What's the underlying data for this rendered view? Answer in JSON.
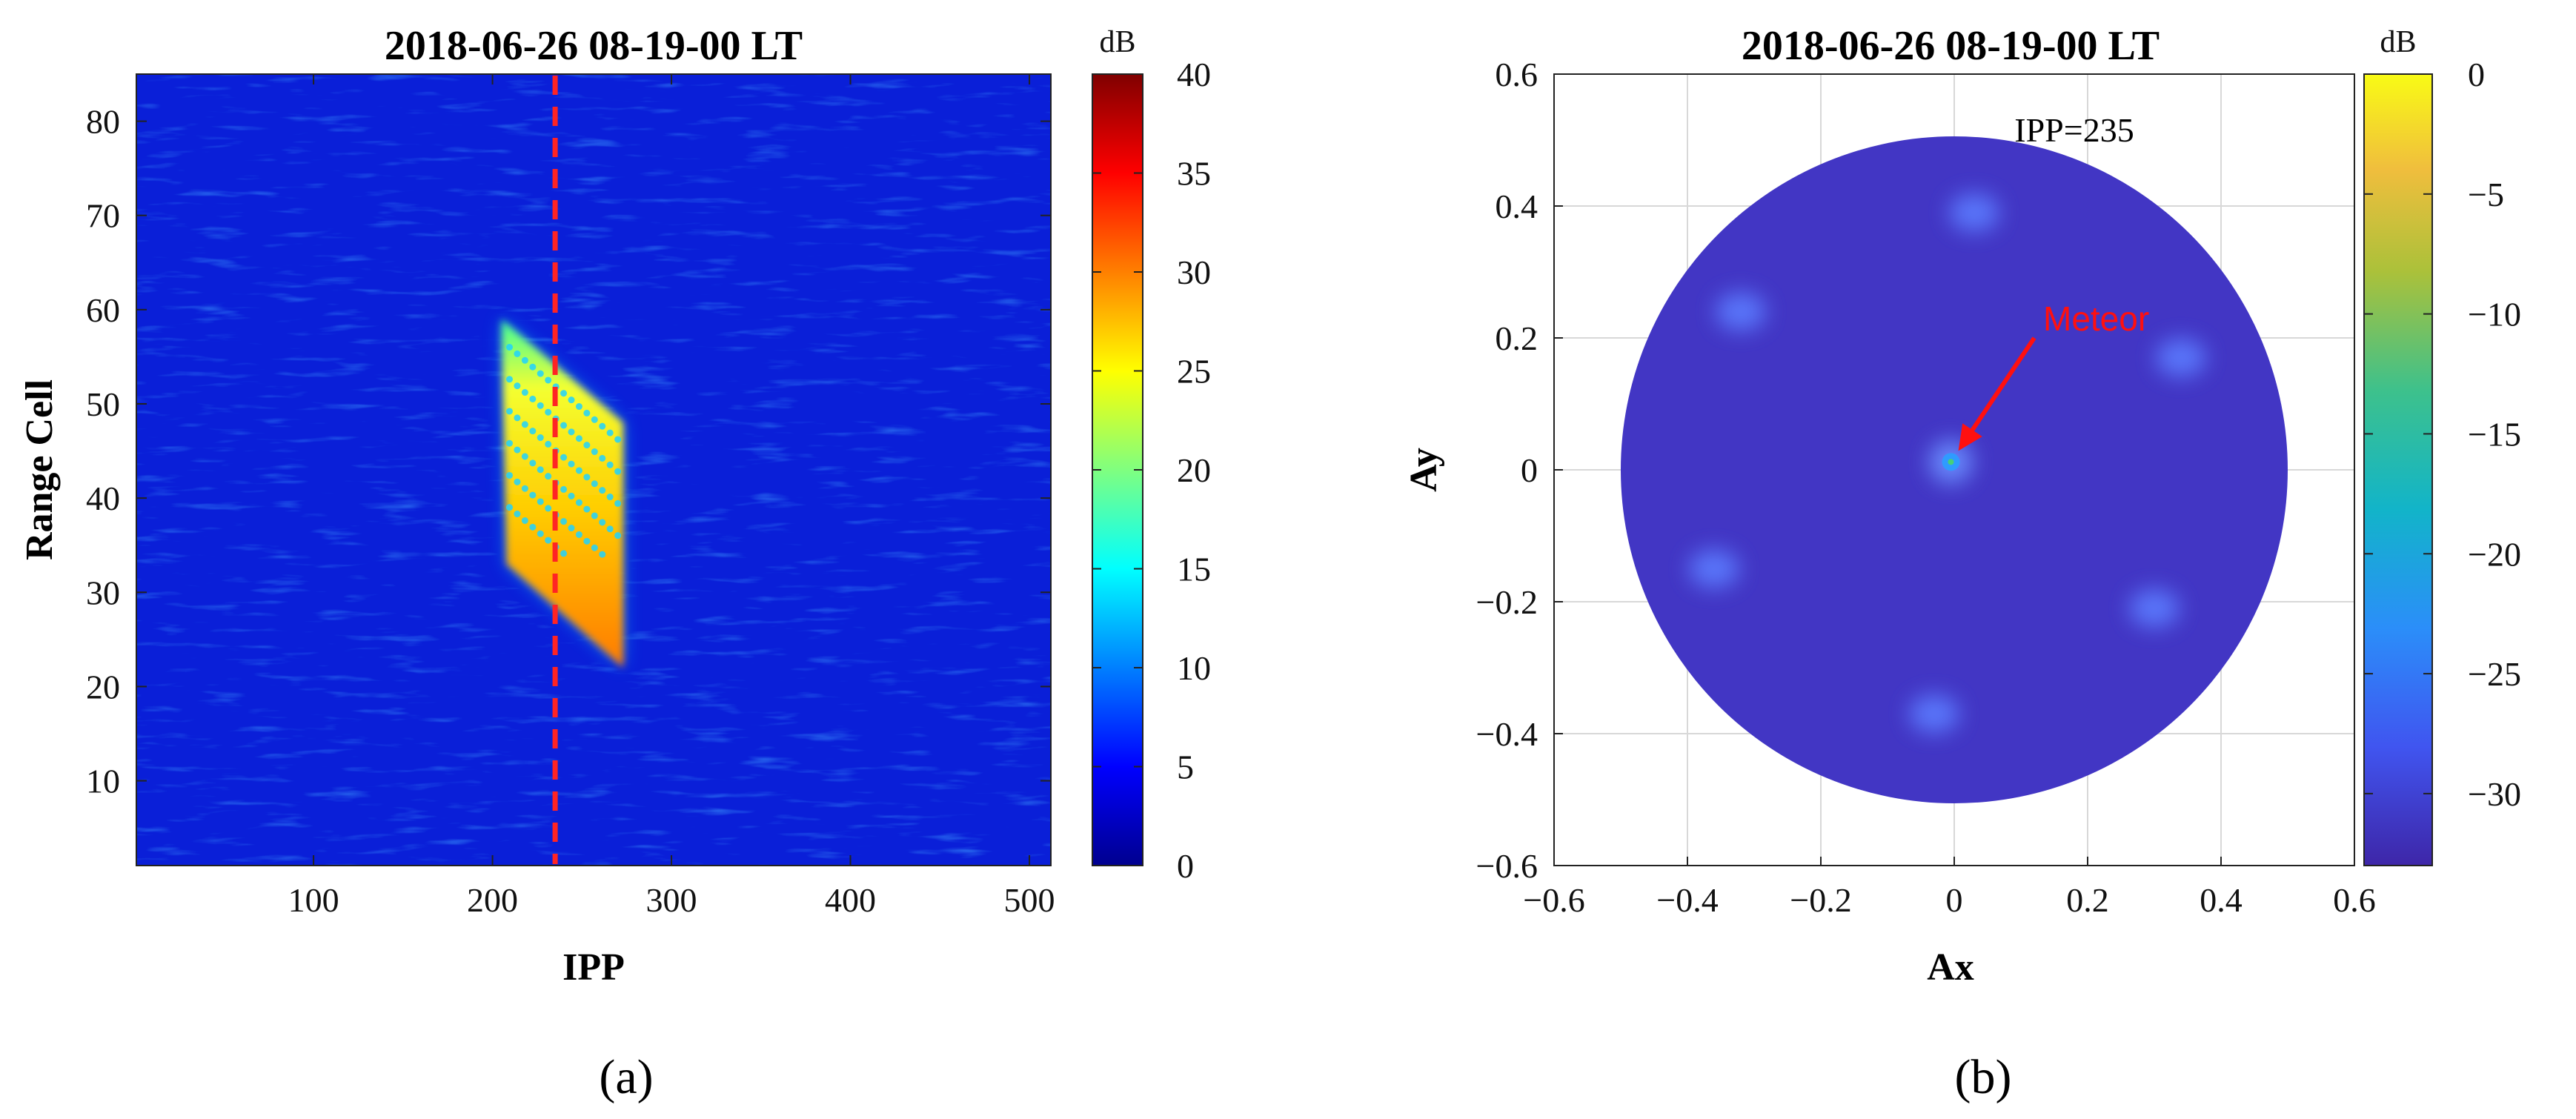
{
  "chart_data": [
    {
      "type": "heatmap",
      "panel_label": "(a)",
      "title": "2018-06-26 08-19-00 LT",
      "xlabel": "IPP",
      "ylabel": "Range Cell",
      "xlim": [
        1,
        512
      ],
      "ylim": [
        1,
        85
      ],
      "xticks": [
        100,
        200,
        300,
        400,
        500
      ],
      "yticks": [
        10,
        20,
        30,
        40,
        50,
        60,
        70,
        80
      ],
      "colorbar": {
        "unit": "dB",
        "min": 0,
        "max": 40,
        "ticks": [
          0,
          5,
          10,
          15,
          20,
          25,
          30,
          35,
          40
        ],
        "colormap": "jet"
      },
      "background_level_db": 4,
      "echo_region": {
        "description": "meteor echo parallelogram",
        "corners": [
          [
            205,
            59
          ],
          [
            273,
            48
          ],
          [
            273,
            22
          ],
          [
            208,
            33
          ]
        ],
        "peak_db": 30
      },
      "marker_line": {
        "x": 235,
        "style": "dashed",
        "color": "#ff2020"
      }
    },
    {
      "type": "heatmap",
      "panel_label": "(b)",
      "title": "2018-06-26 08-19-00 LT",
      "xlabel": "Ax",
      "ylabel": "Ay",
      "xlim": [
        -0.6,
        0.6
      ],
      "ylim": [
        -0.6,
        0.6
      ],
      "xticks": [
        -0.6,
        -0.4,
        -0.2,
        0,
        0.2,
        0.4,
        0.6
      ],
      "yticks": [
        -0.6,
        -0.4,
        -0.2,
        0,
        0.2,
        0.4,
        0.6
      ],
      "xticklabels": [
        "−0.6",
        "−0.4",
        "−0.2",
        "0",
        "0.2",
        "0.4",
        "0.6"
      ],
      "yticklabels": [
        "−0.6",
        "−0.4",
        "−0.2",
        "0",
        "0.2",
        "0.4",
        "0.6"
      ],
      "grid": true,
      "colorbar": {
        "unit": "dB",
        "min": -33,
        "max": 0,
        "ticks": [
          0,
          -5,
          -10,
          -15,
          -20,
          -25,
          -30
        ],
        "ticklabels": [
          "0",
          "−5",
          "−10",
          "−15",
          "−20",
          "−25",
          "−30"
        ],
        "colormap": "parula"
      },
      "disk_radius": 0.5,
      "background_level_db": -31,
      "annotation_text": "IPP=235",
      "sidelobes": [
        {
          "ax": 0.03,
          "ay": 0.39,
          "db": -27
        },
        {
          "ax": -0.32,
          "ay": 0.24,
          "db": -27
        },
        {
          "ax": 0.34,
          "ay": 0.17,
          "db": -26
        },
        {
          "ax": -0.36,
          "ay": -0.15,
          "db": -26
        },
        {
          "ax": 0.3,
          "ay": -0.21,
          "db": -27
        },
        {
          "ax": -0.03,
          "ay": -0.37,
          "db": -26
        }
      ],
      "meteor": {
        "label": "Meteor",
        "ax": -0.005,
        "ay": 0.012,
        "db": -15,
        "arrow_from": [
          0.12,
          0.2
        ]
      }
    }
  ]
}
